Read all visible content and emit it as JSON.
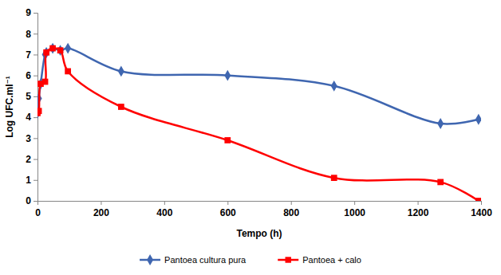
{
  "chart_data": {
    "type": "line",
    "x_label": "Tempo (h)",
    "y_label": "Log UFC.ml⁻¹",
    "x": [
      0,
      4,
      10,
      24,
      28,
      48,
      72,
      96,
      264,
      600,
      936,
      1272,
      1392
    ],
    "series": [
      {
        "name": "Pantoea cultura pura",
        "color": "#3f66b0",
        "marker": "diamond",
        "line_style": "smooth",
        "values": [
          4.2,
          4.9,
          5.6,
          7.0,
          7.1,
          7.3,
          7.2,
          7.3,
          6.2,
          6.0,
          5.5,
          3.7,
          3.9
        ]
      },
      {
        "name": "Pantoea + calo",
        "color": "#ff0000",
        "marker": "square",
        "line_style": "smooth",
        "values": [
          4.2,
          4.3,
          5.6,
          5.7,
          7.1,
          7.3,
          7.2,
          6.2,
          4.5,
          2.9,
          1.1,
          0.9,
          0
        ]
      }
    ],
    "xlim": [
      0,
      1400
    ],
    "xticks": [
      0,
      200,
      400,
      600,
      800,
      1000,
      1200,
      1400
    ],
    "ylim": [
      0,
      9
    ],
    "yticks": [
      0,
      1,
      2,
      3,
      4,
      5,
      6,
      7,
      8,
      9
    ],
    "grid": false,
    "legend": "bottom"
  }
}
